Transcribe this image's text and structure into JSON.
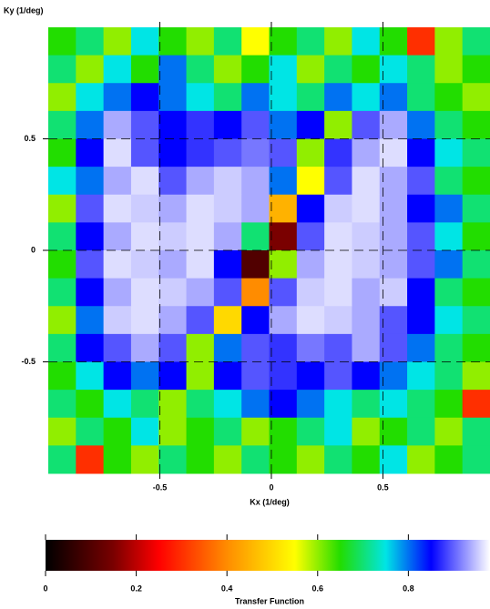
{
  "chart_data": {
    "type": "heatmap",
    "xlabel": "Kx (1/deg)",
    "ylabel": "Ky (1/deg)",
    "xlim": [
      -1,
      0.98
    ],
    "ylim": [
      -1,
      1
    ],
    "xticks": [
      -0.5,
      0,
      0.5
    ],
    "yticks": [
      -0.5,
      0,
      0.5
    ],
    "grid": true,
    "colormap": [
      [
        0,
        "#000000"
      ],
      [
        0.15,
        "#7a0000"
      ],
      [
        0.25,
        "#ff0000"
      ],
      [
        0.4,
        "#ff8c00"
      ],
      [
        0.55,
        "#ffff00"
      ],
      [
        0.65,
        "#22dd00"
      ],
      [
        0.75,
        "#00e5e5"
      ],
      [
        0.85,
        "#0000ff"
      ],
      [
        1,
        "#ffffff"
      ]
    ],
    "z": [
      [
        0.65,
        0.7,
        0.6,
        0.75,
        0.65,
        0.6,
        0.7,
        0.55,
        0.65,
        0.7,
        0.6,
        0.75,
        0.65,
        0.3,
        0.6,
        0.7
      ],
      [
        0.7,
        0.6,
        0.75,
        0.65,
        0.8,
        0.7,
        0.6,
        0.65,
        0.75,
        0.6,
        0.7,
        0.65,
        0.75,
        0.7,
        0.6,
        0.65
      ],
      [
        0.6,
        0.75,
        0.8,
        0.85,
        0.8,
        0.75,
        0.7,
        0.8,
        0.75,
        0.7,
        0.8,
        0.75,
        0.8,
        0.7,
        0.65,
        0.6
      ],
      [
        0.7,
        0.8,
        0.95,
        0.9,
        0.85,
        0.88,
        0.85,
        0.9,
        0.8,
        0.85,
        0.6,
        0.9,
        0.95,
        0.8,
        0.7,
        0.65
      ],
      [
        0.65,
        0.85,
        0.98,
        0.9,
        0.85,
        0.88,
        0.9,
        0.92,
        0.9,
        0.6,
        0.88,
        0.95,
        0.98,
        0.85,
        0.75,
        0.7
      ],
      [
        0.75,
        0.8,
        0.95,
        0.98,
        0.9,
        0.95,
        0.97,
        0.95,
        0.8,
        0.55,
        0.9,
        0.98,
        0.95,
        0.9,
        0.7,
        0.65
      ],
      [
        0.6,
        0.9,
        0.98,
        0.97,
        0.95,
        0.98,
        0.97,
        0.95,
        0.45,
        0.85,
        0.97,
        0.98,
        0.95,
        0.85,
        0.8,
        0.7
      ],
      [
        0.7,
        0.85,
        0.95,
        0.98,
        0.97,
        0.98,
        0.95,
        0.7,
        0.15,
        0.9,
        0.98,
        0.97,
        0.95,
        0.9,
        0.75,
        0.65
      ],
      [
        0.65,
        0.9,
        0.98,
        0.97,
        0.95,
        0.98,
        0.85,
        0.1,
        0.6,
        0.95,
        0.98,
        0.97,
        0.95,
        0.9,
        0.8,
        0.7
      ],
      [
        0.7,
        0.85,
        0.95,
        0.98,
        0.97,
        0.95,
        0.9,
        0.4,
        0.9,
        0.97,
        0.98,
        0.95,
        0.97,
        0.85,
        0.7,
        0.65
      ],
      [
        0.6,
        0.8,
        0.97,
        0.98,
        0.95,
        0.9,
        0.5,
        0.85,
        0.95,
        0.98,
        0.97,
        0.95,
        0.9,
        0.85,
        0.75,
        0.7
      ],
      [
        0.7,
        0.85,
        0.9,
        0.95,
        0.9,
        0.6,
        0.8,
        0.9,
        0.88,
        0.92,
        0.9,
        0.95,
        0.9,
        0.8,
        0.7,
        0.65
      ],
      [
        0.65,
        0.75,
        0.85,
        0.8,
        0.85,
        0.6,
        0.85,
        0.9,
        0.88,
        0.85,
        0.9,
        0.85,
        0.8,
        0.75,
        0.7,
        0.6
      ],
      [
        0.7,
        0.65,
        0.75,
        0.7,
        0.6,
        0.7,
        0.75,
        0.8,
        0.85,
        0.8,
        0.75,
        0.7,
        0.75,
        0.7,
        0.65,
        0.3
      ],
      [
        0.6,
        0.7,
        0.65,
        0.75,
        0.6,
        0.65,
        0.7,
        0.6,
        0.65,
        0.7,
        0.75,
        0.6,
        0.65,
        0.7,
        0.6,
        0.7
      ],
      [
        0.7,
        0.3,
        0.65,
        0.6,
        0.7,
        0.65,
        0.6,
        0.7,
        0.65,
        0.6,
        0.7,
        0.65,
        0.75,
        0.6,
        0.65,
        0.7
      ]
    ],
    "colorbar": {
      "label": "Transfer Function",
      "lim": [
        0,
        0.98
      ],
      "ticks": [
        0,
        0.2,
        0.4,
        0.6,
        0.8
      ]
    }
  }
}
